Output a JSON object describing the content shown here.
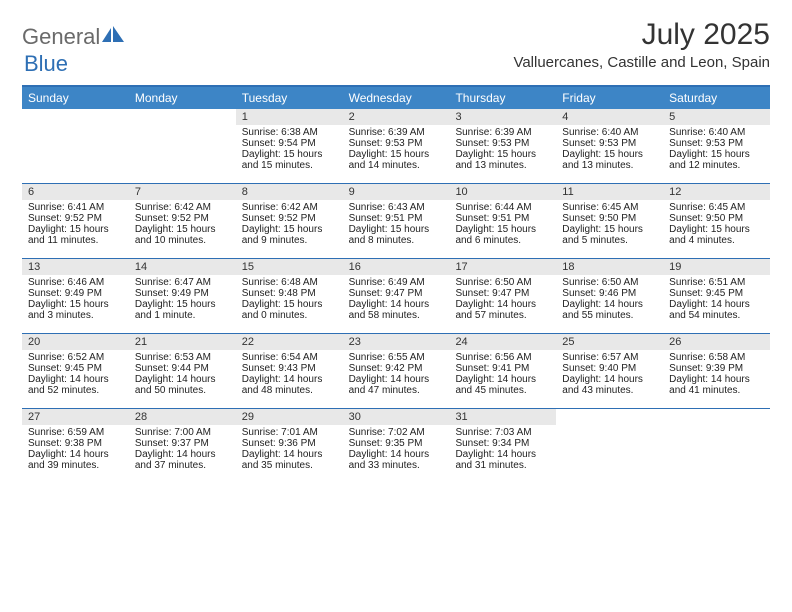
{
  "brand": {
    "part1": "General",
    "part2": "Blue"
  },
  "title": "July 2025",
  "location": "Valluercanes, Castille and Leon, Spain",
  "colors": {
    "accent": "#3d85c6",
    "border": "#2e6fb4",
    "logo_gray": "#6a6a6a",
    "stripe": "#e8e8e8"
  },
  "dow": [
    "Sunday",
    "Monday",
    "Tuesday",
    "Wednesday",
    "Thursday",
    "Friday",
    "Saturday"
  ],
  "weeks": [
    [
      null,
      null,
      {
        "n": "1",
        "sr": "6:38 AM",
        "ss": "9:54 PM",
        "dl": "15 hours and 15 minutes."
      },
      {
        "n": "2",
        "sr": "6:39 AM",
        "ss": "9:53 PM",
        "dl": "15 hours and 14 minutes."
      },
      {
        "n": "3",
        "sr": "6:39 AM",
        "ss": "9:53 PM",
        "dl": "15 hours and 13 minutes."
      },
      {
        "n": "4",
        "sr": "6:40 AM",
        "ss": "9:53 PM",
        "dl": "15 hours and 13 minutes."
      },
      {
        "n": "5",
        "sr": "6:40 AM",
        "ss": "9:53 PM",
        "dl": "15 hours and 12 minutes."
      }
    ],
    [
      {
        "n": "6",
        "sr": "6:41 AM",
        "ss": "9:52 PM",
        "dl": "15 hours and 11 minutes."
      },
      {
        "n": "7",
        "sr": "6:42 AM",
        "ss": "9:52 PM",
        "dl": "15 hours and 10 minutes."
      },
      {
        "n": "8",
        "sr": "6:42 AM",
        "ss": "9:52 PM",
        "dl": "15 hours and 9 minutes."
      },
      {
        "n": "9",
        "sr": "6:43 AM",
        "ss": "9:51 PM",
        "dl": "15 hours and 8 minutes."
      },
      {
        "n": "10",
        "sr": "6:44 AM",
        "ss": "9:51 PM",
        "dl": "15 hours and 6 minutes."
      },
      {
        "n": "11",
        "sr": "6:45 AM",
        "ss": "9:50 PM",
        "dl": "15 hours and 5 minutes."
      },
      {
        "n": "12",
        "sr": "6:45 AM",
        "ss": "9:50 PM",
        "dl": "15 hours and 4 minutes."
      }
    ],
    [
      {
        "n": "13",
        "sr": "6:46 AM",
        "ss": "9:49 PM",
        "dl": "15 hours and 3 minutes."
      },
      {
        "n": "14",
        "sr": "6:47 AM",
        "ss": "9:49 PM",
        "dl": "15 hours and 1 minute."
      },
      {
        "n": "15",
        "sr": "6:48 AM",
        "ss": "9:48 PM",
        "dl": "15 hours and 0 minutes."
      },
      {
        "n": "16",
        "sr": "6:49 AM",
        "ss": "9:47 PM",
        "dl": "14 hours and 58 minutes."
      },
      {
        "n": "17",
        "sr": "6:50 AM",
        "ss": "9:47 PM",
        "dl": "14 hours and 57 minutes."
      },
      {
        "n": "18",
        "sr": "6:50 AM",
        "ss": "9:46 PM",
        "dl": "14 hours and 55 minutes."
      },
      {
        "n": "19",
        "sr": "6:51 AM",
        "ss": "9:45 PM",
        "dl": "14 hours and 54 minutes."
      }
    ],
    [
      {
        "n": "20",
        "sr": "6:52 AM",
        "ss": "9:45 PM",
        "dl": "14 hours and 52 minutes."
      },
      {
        "n": "21",
        "sr": "6:53 AM",
        "ss": "9:44 PM",
        "dl": "14 hours and 50 minutes."
      },
      {
        "n": "22",
        "sr": "6:54 AM",
        "ss": "9:43 PM",
        "dl": "14 hours and 48 minutes."
      },
      {
        "n": "23",
        "sr": "6:55 AM",
        "ss": "9:42 PM",
        "dl": "14 hours and 47 minutes."
      },
      {
        "n": "24",
        "sr": "6:56 AM",
        "ss": "9:41 PM",
        "dl": "14 hours and 45 minutes."
      },
      {
        "n": "25",
        "sr": "6:57 AM",
        "ss": "9:40 PM",
        "dl": "14 hours and 43 minutes."
      },
      {
        "n": "26",
        "sr": "6:58 AM",
        "ss": "9:39 PM",
        "dl": "14 hours and 41 minutes."
      }
    ],
    [
      {
        "n": "27",
        "sr": "6:59 AM",
        "ss": "9:38 PM",
        "dl": "14 hours and 39 minutes."
      },
      {
        "n": "28",
        "sr": "7:00 AM",
        "ss": "9:37 PM",
        "dl": "14 hours and 37 minutes."
      },
      {
        "n": "29",
        "sr": "7:01 AM",
        "ss": "9:36 PM",
        "dl": "14 hours and 35 minutes."
      },
      {
        "n": "30",
        "sr": "7:02 AM",
        "ss": "9:35 PM",
        "dl": "14 hours and 33 minutes."
      },
      {
        "n": "31",
        "sr": "7:03 AM",
        "ss": "9:34 PM",
        "dl": "14 hours and 31 minutes."
      },
      null,
      null
    ]
  ],
  "labels": {
    "sunrise": "Sunrise:",
    "sunset": "Sunset:",
    "daylight": "Daylight:"
  }
}
